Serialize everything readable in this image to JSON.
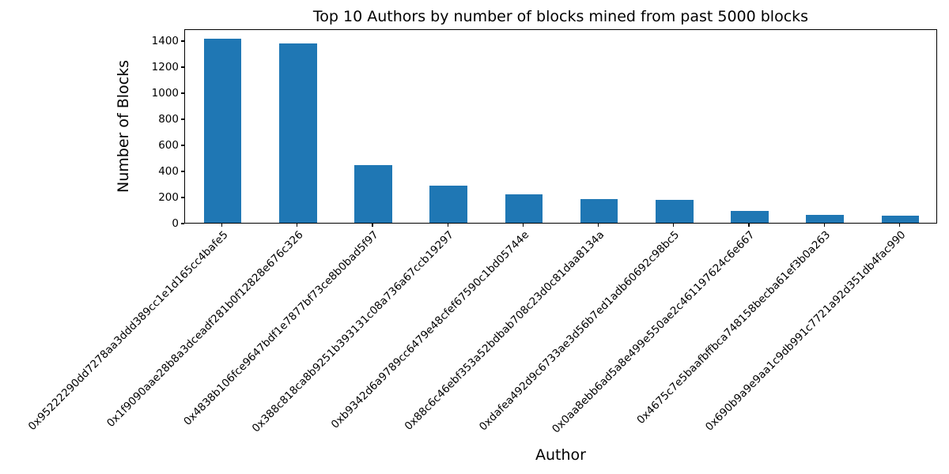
{
  "chart_data": {
    "type": "bar",
    "title": "Top 10 Authors by number of blocks mined from past 5000 blocks",
    "xlabel": "Author",
    "ylabel": "Number of Blocks",
    "bar_color": "#1f77b4",
    "axis_color": "#000000",
    "ylim": [
      0,
      1490
    ],
    "yticks": [
      0,
      200,
      400,
      600,
      800,
      1000,
      1200,
      1400
    ],
    "grid": false,
    "legend": "none",
    "categories": [
      "0x95222290dd7278aa3ddd389cc1e1d165cc4bafe5",
      "0x1f9090aae28b8a3dceadf281b0f12828e676c326",
      "0x4838b106fce9647bdf1e7877bf73ce8b0bad5f97",
      "0x388c818ca8b9251b393131c08a736a67ccb19297",
      "0xb9342d6a9789cc6479e48cfef67590c1bd05744e",
      "0x88c6c46ebf353a52bdbab708c23d0c81daa8134a",
      "0xdafea492d9c6733ae3d56b7ed1adb60692c98bc5",
      "0x0aa8ebb6ad5a8e499e550ae2c461197624c6e667",
      "0x4675c7e5baafbffbca748158becba61ef3b0a263",
      "0x690b9a9e9aa1c9db991c7721a92d351db4fac990"
    ],
    "values": [
      1410,
      1375,
      445,
      285,
      216,
      184,
      174,
      93,
      59,
      55
    ]
  }
}
